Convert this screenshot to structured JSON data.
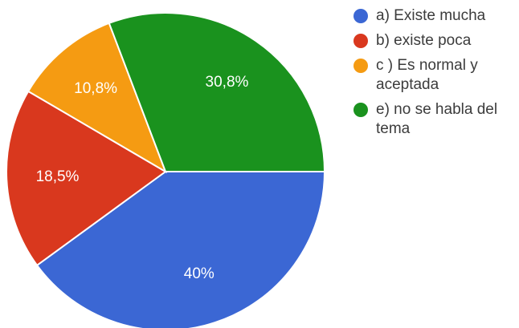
{
  "chart_data": {
    "type": "pie",
    "categories": [
      "a) Existe mucha",
      "b) existe poca",
      "c ) Es normal y aceptada",
      "e) no se habla del tema"
    ],
    "values": [
      40,
      18.5,
      10.8,
      30.8
    ],
    "data_labels": [
      "40%",
      "18,5%",
      "10,8%",
      "30,8%"
    ],
    "colors": [
      "#3b67d4",
      "#d9381e",
      "#f59b12",
      "#1a921e"
    ],
    "start_direction": "right, clockwise",
    "legend_position": "right"
  }
}
